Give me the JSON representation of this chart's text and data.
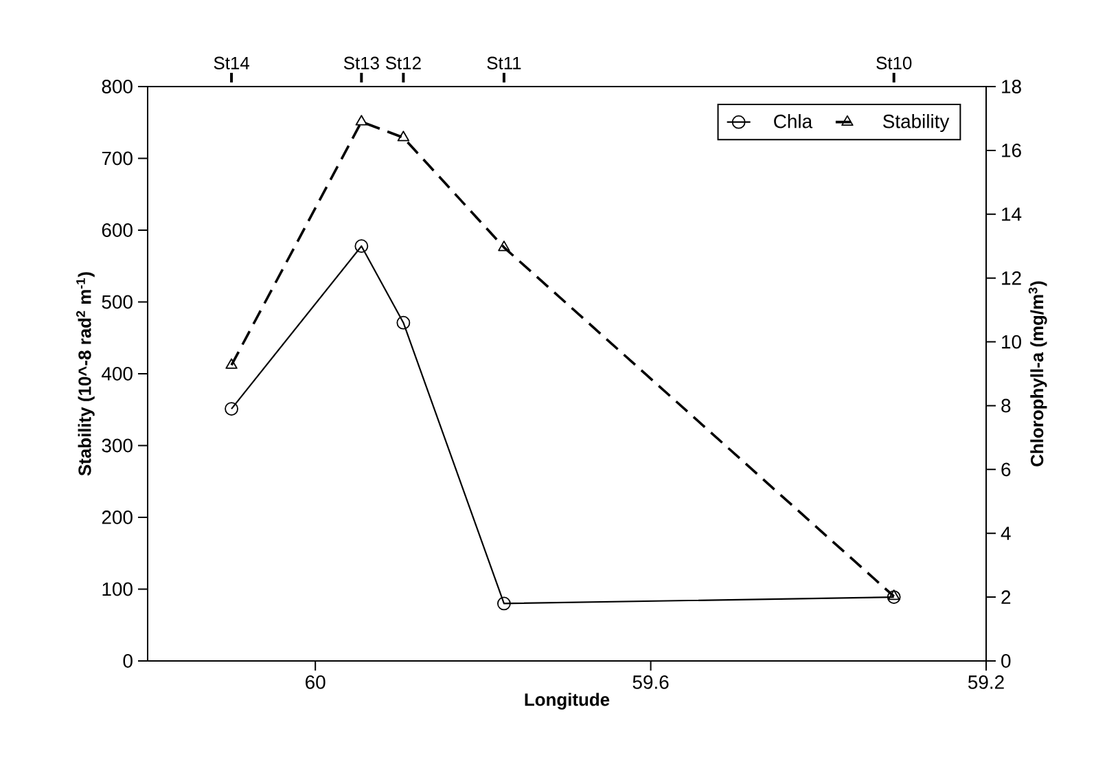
{
  "chart_data": {
    "type": "line",
    "xlabel": "Longitude",
    "ylabel": "Stability (10^-8 rad$^{2}$ m$^{-1}$)",
    "y2label": "Chlorophyll-a (mg/m$^{3}$)",
    "x": [
      60.1,
      59.945,
      59.895,
      59.775,
      59.31
    ],
    "series": [
      {
        "name": "Chla",
        "axis": "y2",
        "color": "#000000",
        "marker": "circle",
        "line_style": "solid",
        "values": [
          7.9,
          13.0,
          10.6,
          1.8,
          2.0
        ]
      },
      {
        "name": "Stability",
        "color": "#000000",
        "marker": "triangle",
        "line_style": "dashed",
        "values": [
          412,
          751,
          729,
          576,
          90
        ]
      }
    ],
    "xlim": [
      60.2,
      59.2
    ],
    "xticks": [
      60,
      59.6,
      59.2
    ],
    "annotations": [
      "St14",
      "St13",
      "St12",
      "St11",
      "St10"
    ],
    "ylim": [
      0,
      800
    ],
    "yticks": [
      0,
      100,
      200,
      300,
      400,
      500,
      600,
      700,
      800
    ],
    "y2lim": [
      0,
      18
    ],
    "y2ticks": [
      0,
      2,
      4,
      6,
      8,
      10,
      12,
      14,
      16,
      18
    ],
    "legend": "top right",
    "grid": false
  }
}
